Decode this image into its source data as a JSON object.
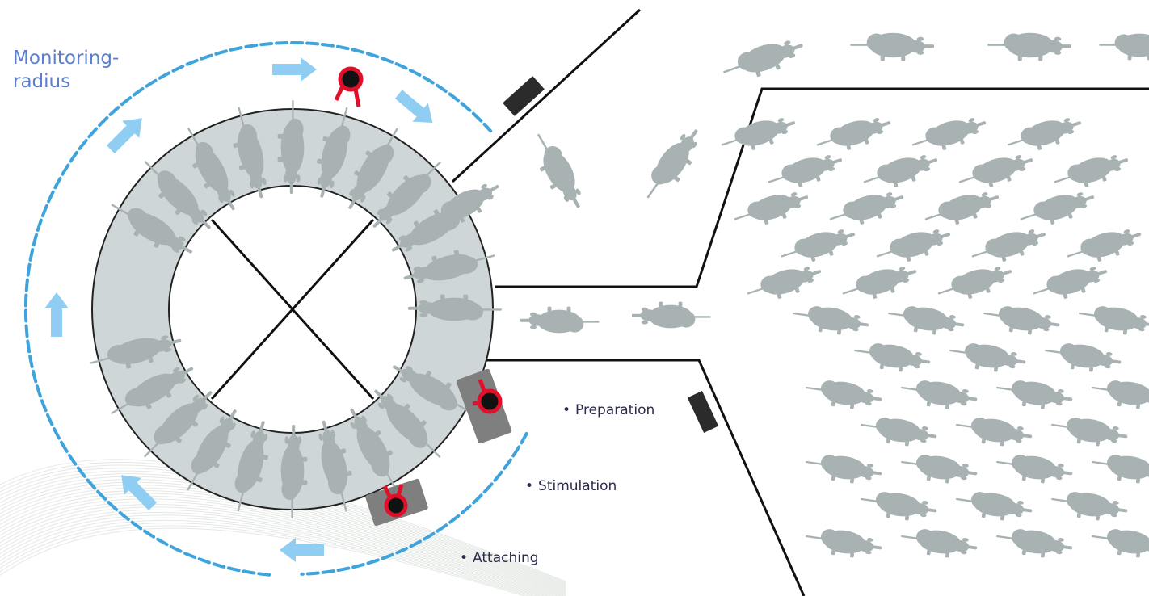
{
  "labels": {
    "monitoring_line1": "Monitoring-",
    "monitoring_line2": "radius",
    "preparation": "Preparation",
    "stimulation": "Stimulation",
    "attaching": "Attaching",
    "bullet": "•"
  },
  "colors": {
    "monitoring_text": "#5b7fd0",
    "step_text": "#2a2a4a",
    "dashed_radius": "#3fa3dc",
    "arrow": "#8fcdf2",
    "ring": "#cfd6d8",
    "cow": "#a8b2b3",
    "robot_red": "#e0102a",
    "robot_base": "#7f7f7f",
    "wall": "#111111"
  },
  "icons": {
    "rotation_arrow": "arrow-icon",
    "robot": "robot-arm-icon",
    "cow": "cow-icon",
    "gate": "gate-icon"
  }
}
